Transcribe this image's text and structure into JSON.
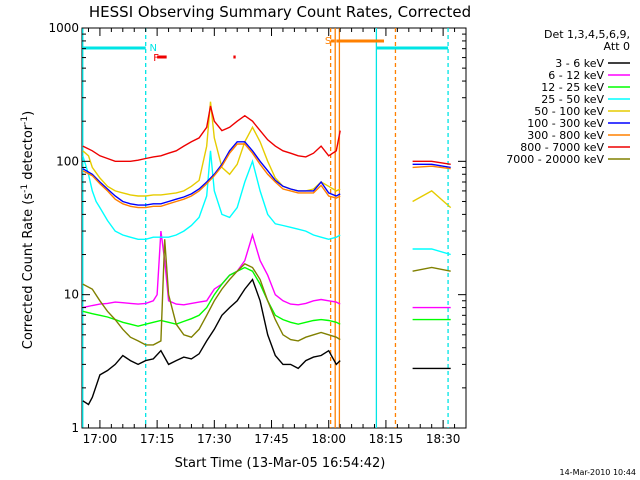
{
  "chart_data": {
    "type": "line",
    "title": "HESSI Observing Summary Count Rates, Corrected",
    "xlabel": "Start Time (13-Mar-05 16:54:42)",
    "ylabel_main": "Corrected Count Rate (s",
    "ylabel_sup1": "-1",
    "ylabel_mid": " detector",
    "ylabel_sup2": "-1",
    "ylabel_end": ")",
    "y_scale": "log",
    "ylim": [
      1,
      1000
    ],
    "xlim_min": [
      -4.7,
      96
    ],
    "x_ticks": [
      {
        "v": 0,
        "label": "17:00"
      },
      {
        "v": 15,
        "label": "17:15"
      },
      {
        "v": 30,
        "label": "17:30"
      },
      {
        "v": 45,
        "label": "17:45"
      },
      {
        "v": 60,
        "label": "18:00"
      },
      {
        "v": 75,
        "label": "18:15"
      },
      {
        "v": 90,
        "label": "18:30"
      }
    ],
    "y_ticks": [
      {
        "v": 1,
        "label": "1"
      },
      {
        "v": 10,
        "label": "10"
      },
      {
        "v": 100,
        "label": "100"
      },
      {
        "v": 1000,
        "label": "1000"
      }
    ],
    "footer_date": "14-Mar-2010 10:44",
    "legend": {
      "title1": "Det 1,3,4,5,6,9,",
      "title2": "Att 0",
      "placement": "right"
    },
    "series": [
      {
        "name": "3 - 6 keV",
        "color": "#000000",
        "x": [
          -4.5,
          -3,
          -2,
          0,
          2,
          4,
          6,
          8,
          10,
          12,
          14,
          16,
          18,
          20,
          22,
          24,
          26,
          28,
          30,
          32,
          34,
          36,
          38,
          40,
          42,
          44,
          46,
          48,
          50,
          52,
          54,
          56,
          58,
          60,
          62,
          63
        ],
        "y": [
          1.6,
          1.5,
          1.7,
          2.5,
          2.7,
          3,
          3.5,
          3.2,
          3,
          3.2,
          3.3,
          3.8,
          3,
          3.2,
          3.4,
          3.3,
          3.6,
          4.5,
          5.5,
          7,
          8,
          9,
          11,
          13,
          9,
          5,
          3.5,
          3,
          3,
          2.8,
          3.2,
          3.4,
          3.5,
          3.8,
          3,
          3.2
        ]
      },
      {
        "name": "6 - 12 keV",
        "color": "#ff00ff",
        "x": [
          -4.5,
          -2,
          0,
          2,
          4,
          6,
          8,
          10,
          12,
          14,
          15,
          16,
          17,
          18,
          20,
          22,
          24,
          26,
          28,
          30,
          32,
          34,
          36,
          38,
          40,
          42,
          44,
          46,
          48,
          50,
          52,
          54,
          56,
          58,
          60,
          62,
          63
        ],
        "y": [
          8,
          8.3,
          8.5,
          8.6,
          8.8,
          8.7,
          8.6,
          8.5,
          8.6,
          9,
          10,
          30,
          18,
          9,
          8.5,
          8.4,
          8.6,
          8.8,
          9,
          11,
          12,
          14,
          15,
          18,
          28,
          18,
          14,
          10,
          9,
          8.5,
          8.4,
          8.6,
          9,
          9.2,
          9,
          8.8,
          8.5
        ]
      },
      {
        "name": "12 - 25 keV",
        "color": "#00ff00",
        "x": [
          -4.5,
          -2,
          0,
          2,
          4,
          6,
          8,
          10,
          12,
          14,
          16,
          18,
          20,
          22,
          24,
          26,
          28,
          30,
          32,
          34,
          36,
          38,
          40,
          42,
          44,
          46,
          48,
          50,
          52,
          54,
          56,
          58,
          60,
          62,
          63
        ],
        "y": [
          7.5,
          7.2,
          7,
          6.8,
          6.5,
          6.2,
          6,
          5.8,
          6,
          6.2,
          6.4,
          6.2,
          6,
          6.3,
          6.6,
          7,
          8,
          10,
          12,
          14,
          15,
          16,
          15,
          12,
          9,
          7,
          6.5,
          6.2,
          6,
          6.2,
          6.4,
          6.5,
          6.4,
          6.2,
          6
        ]
      },
      {
        "name": "25 - 50 keV",
        "color": "#00ffff",
        "x": [
          -4.5,
          -3,
          -2,
          -1,
          0,
          2,
          4,
          6,
          8,
          10,
          12,
          14,
          16,
          18,
          20,
          22,
          24,
          26,
          28,
          29,
          30,
          32,
          34,
          36,
          38,
          40,
          42,
          44,
          46,
          48,
          50,
          52,
          54,
          56,
          58,
          60,
          62,
          63
        ],
        "y": [
          110,
          80,
          60,
          50,
          45,
          36,
          30,
          28,
          27,
          26,
          26,
          27,
          27,
          27,
          28,
          30,
          33,
          38,
          55,
          120,
          60,
          40,
          38,
          45,
          70,
          100,
          60,
          40,
          34,
          33,
          32,
          31,
          30,
          28,
          27,
          26,
          27,
          28
        ]
      },
      {
        "name": "50 - 100 keV",
        "color": "#e6cc00",
        "x": [
          -4.5,
          -3,
          -2,
          0,
          2,
          4,
          6,
          8,
          10,
          12,
          14,
          16,
          18,
          20,
          22,
          24,
          26,
          28,
          29,
          30,
          32,
          34,
          36,
          38,
          40,
          42,
          44,
          46,
          48,
          50,
          52,
          54,
          56,
          58,
          60,
          62,
          63
        ],
        "y": [
          120,
          110,
          90,
          75,
          65,
          60,
          58,
          56,
          55,
          55,
          56,
          56,
          57,
          58,
          60,
          65,
          72,
          130,
          280,
          150,
          90,
          80,
          95,
          140,
          180,
          140,
          100,
          75,
          65,
          62,
          60,
          60,
          62,
          70,
          65,
          60,
          62
        ]
      },
      {
        "name": "100 - 300 keV",
        "color": "#0000ff",
        "x": [
          -4.5,
          -2,
          0,
          2,
          4,
          6,
          8,
          10,
          12,
          14,
          16,
          18,
          20,
          22,
          24,
          26,
          28,
          30,
          32,
          34,
          36,
          38,
          40,
          42,
          44,
          46,
          48,
          50,
          52,
          54,
          56,
          58,
          60,
          62,
          63
        ],
        "y": [
          88,
          80,
          70,
          62,
          55,
          50,
          48,
          47,
          47,
          48,
          48,
          50,
          52,
          54,
          57,
          62,
          70,
          80,
          95,
          120,
          140,
          140,
          120,
          100,
          85,
          72,
          65,
          62,
          60,
          60,
          60,
          70,
          58,
          55,
          57
        ]
      },
      {
        "name": "300 - 800 keV",
        "color": "#ff8000",
        "x": [
          -4.5,
          -2,
          0,
          2,
          4,
          6,
          8,
          10,
          12,
          14,
          16,
          18,
          20,
          22,
          24,
          26,
          28,
          30,
          32,
          34,
          36,
          38,
          40,
          42,
          44,
          46,
          48,
          50,
          52,
          54,
          56,
          58,
          60,
          62,
          63
        ],
        "y": [
          85,
          78,
          68,
          60,
          52,
          48,
          46,
          45,
          45,
          46,
          46,
          48,
          50,
          52,
          55,
          60,
          68,
          78,
          92,
          115,
          135,
          135,
          115,
          95,
          80,
          70,
          62,
          60,
          58,
          58,
          58,
          66,
          55,
          53,
          55
        ]
      },
      {
        "name": "800 - 7000 keV",
        "color": "#ee0000",
        "x": [
          -4.5,
          -2,
          0,
          2,
          4,
          6,
          8,
          10,
          12,
          14,
          16,
          18,
          20,
          22,
          24,
          26,
          28,
          29,
          30,
          32,
          34,
          36,
          38,
          40,
          42,
          44,
          46,
          48,
          50,
          52,
          54,
          56,
          58,
          60,
          62,
          63
        ],
        "y": [
          130,
          120,
          110,
          105,
          100,
          100,
          100,
          102,
          105,
          108,
          110,
          115,
          120,
          130,
          140,
          150,
          180,
          260,
          200,
          170,
          180,
          200,
          220,
          200,
          170,
          145,
          130,
          120,
          115,
          110,
          108,
          115,
          130,
          110,
          120,
          170
        ]
      },
      {
        "name": "7000 - 20000 keV",
        "color": "#808000",
        "x": [
          -4.5,
          -2,
          0,
          2,
          4,
          6,
          8,
          10,
          12,
          14,
          16,
          17,
          18,
          20,
          22,
          24,
          26,
          28,
          30,
          32,
          34,
          36,
          38,
          40,
          42,
          44,
          46,
          48,
          50,
          52,
          54,
          56,
          58,
          60,
          62,
          63
        ],
        "y": [
          12,
          11,
          9,
          7.5,
          6.5,
          5.5,
          4.8,
          4.5,
          4.2,
          4.2,
          4.5,
          26,
          10,
          6,
          5,
          4.8,
          5.5,
          7,
          9,
          11,
          13,
          15,
          17,
          16,
          13,
          9,
          6.5,
          5,
          4.6,
          4.5,
          4.8,
          5,
          5.2,
          5,
          4.8,
          4.6
        ]
      }
    ],
    "late_segment": {
      "x_start": 82,
      "x_end": 92,
      "y_by_series": [
        [
          2.8,
          2.8,
          2.8
        ],
        [
          8,
          8,
          8
        ],
        [
          6.5,
          6.5,
          6.5
        ],
        [
          22,
          22,
          20
        ],
        [
          50,
          60,
          45
        ],
        [
          95,
          95,
          90
        ],
        [
          90,
          92,
          88
        ],
        [
          100,
          100,
          95
        ],
        [
          15,
          16,
          15
        ]
      ]
    },
    "flags": {
      "n_label": "N",
      "f_label": "F",
      "s_label": "S"
    }
  }
}
